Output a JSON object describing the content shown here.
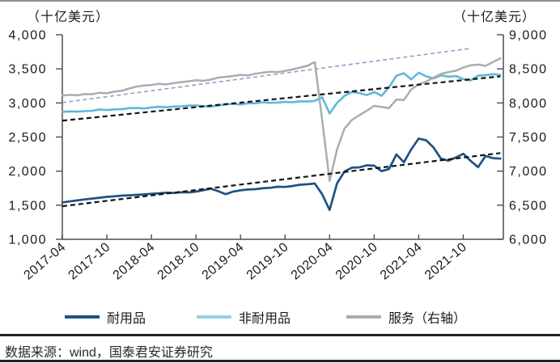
{
  "page": {
    "source_note": "数据来源：wind，国泰君安证券研究"
  },
  "chart_data": {
    "type": "line",
    "left_axis": {
      "title": "（十亿美元）",
      "min": 1000,
      "max": 4000,
      "step": 500,
      "tick_labels": [
        "4,000",
        "3,500",
        "3,000",
        "2,500",
        "2,000",
        "1,500",
        "1,000"
      ]
    },
    "right_axis": {
      "title": "（十亿美元）",
      "min": 6000,
      "max": 9000,
      "step": 500,
      "tick_labels": [
        "9,000",
        "8,500",
        "8,000",
        "7,500",
        "7,000",
        "6,500",
        "6,000"
      ]
    },
    "x_axis": {
      "tick_labels": [
        "2017-04",
        "2017-10",
        "2018-04",
        "2018-10",
        "2019-04",
        "2019-10",
        "2020-04",
        "2020-10",
        "2021-04",
        "2021-10"
      ],
      "tick_month_indices": [
        0,
        6,
        12,
        18,
        24,
        30,
        36,
        42,
        48,
        54
      ],
      "months_total": 60
    },
    "series": [
      {
        "name": "耐用品",
        "axis": "left",
        "color": "#1F5282",
        "width": 2.7,
        "style": "solid",
        "values": [
          1541,
          1556,
          1570,
          1585,
          1598,
          1610,
          1622,
          1631,
          1640,
          1645,
          1652,
          1658,
          1668,
          1675,
          1683,
          1680,
          1690,
          1688,
          1700,
          1720,
          1742,
          1705,
          1662,
          1700,
          1719,
          1730,
          1735,
          1748,
          1755,
          1771,
          1768,
          1782,
          1800,
          1808,
          1818,
          1660,
          1430,
          1820,
          1995,
          2050,
          2055,
          2085,
          2080,
          2000,
          2030,
          2245,
          2130,
          2320,
          2478,
          2452,
          2345,
          2183,
          2152,
          2200,
          2254,
          2150,
          2058,
          2223,
          2190,
          2183
        ]
      },
      {
        "name": "非耐用品",
        "axis": "left",
        "color": "#5FB8DA",
        "width": 2.6,
        "style": "solid",
        "values": [
          2870,
          2876,
          2872,
          2880,
          2884,
          2906,
          2896,
          2906,
          2908,
          2924,
          2926,
          2918,
          2934,
          2944,
          2936,
          2948,
          2950,
          2960,
          2964,
          2952,
          2946,
          2964,
          2978,
          2986,
          2978,
          2994,
          2996,
          3010,
          3002,
          3006,
          3016,
          3010,
          3024,
          3020,
          3030,
          3085,
          2845,
          3000,
          3105,
          3160,
          3145,
          3115,
          3160,
          3105,
          3230,
          3400,
          3435,
          3345,
          3445,
          3390,
          3360,
          3405,
          3385,
          3395,
          3350,
          3330,
          3400,
          3408,
          3422,
          3410
        ]
      },
      {
        "name": "服务（右轴）",
        "axis": "right",
        "color": "#ACACAC",
        "width": 2.5,
        "style": "solid",
        "values": [
          8110,
          8118,
          8112,
          8130,
          8128,
          8150,
          8142,
          8165,
          8178,
          8212,
          8240,
          8255,
          8262,
          8280,
          8272,
          8292,
          8305,
          8318,
          8332,
          8325,
          8342,
          8373,
          8382,
          8395,
          8412,
          8405,
          8428,
          8445,
          8458,
          8452,
          8470,
          8492,
          8518,
          8545,
          8600,
          7750,
          6855,
          7320,
          7625,
          7750,
          7820,
          7885,
          7958,
          7940,
          7925,
          8050,
          8042,
          8200,
          8272,
          8312,
          8372,
          8425,
          8452,
          8472,
          8520,
          8552,
          8562,
          8545,
          8600,
          8655
        ]
      },
      {
        "name": "耐用品趋势线",
        "axis": "left",
        "color": "#141414",
        "width": 2.2,
        "style": "dashed",
        "trend": {
          "start": 1485,
          "end": 2265,
          "m0": 0,
          "m1": 59
        }
      },
      {
        "name": "非耐用品趋势线",
        "axis": "left",
        "color": "#141414",
        "width": 2.2,
        "style": "dashed",
        "trend": {
          "start": 2740,
          "end": 3390,
          "m0": 0,
          "m1": 59
        }
      },
      {
        "name": "服务趋势线",
        "axis": "right",
        "color": "#8FA8CC",
        "width": 1.7,
        "style": "dashed",
        "trend": {
          "start": 8005,
          "end": 8800,
          "m0": 0,
          "m1": 55
        }
      }
    ],
    "legend": [
      {
        "label": "耐用品",
        "color": "#1F5282"
      },
      {
        "label": "非耐用品",
        "color": "#8FD2E4"
      },
      {
        "label": "服务（右轴）",
        "color": "#ACACAC"
      }
    ]
  }
}
